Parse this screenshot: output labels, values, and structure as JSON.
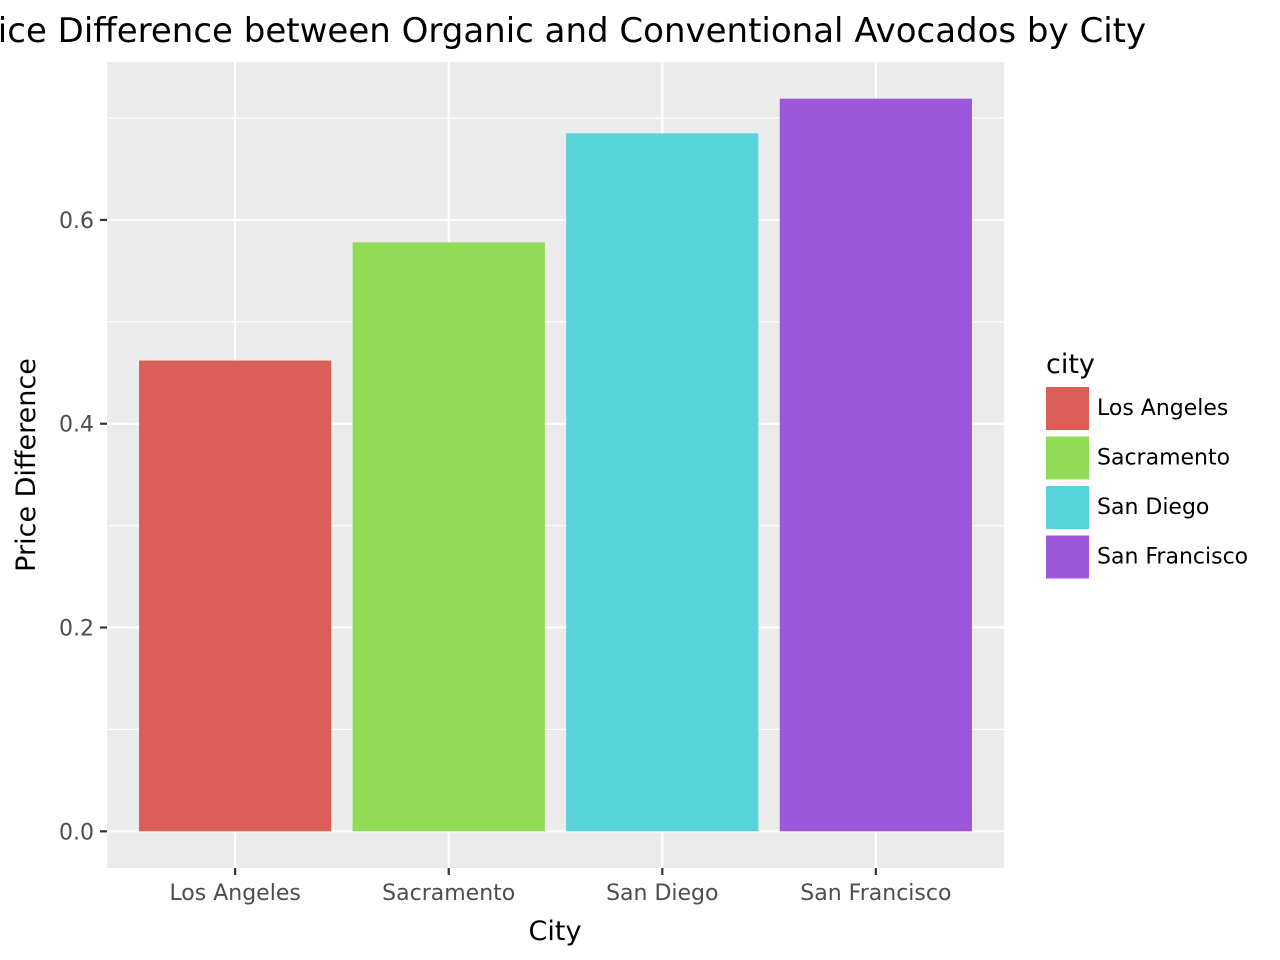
{
  "chart_data": {
    "type": "bar",
    "title": "Price Difference between Organic and Conventional Avocados by City",
    "xlabel": "City",
    "ylabel": "Price Difference",
    "categories": [
      "Los Angeles",
      "Sacramento",
      "San Diego",
      "San Francisco"
    ],
    "values": [
      0.462,
      0.578,
      0.685,
      0.719
    ],
    "ylim": [
      -0.036,
      0.755
    ],
    "yticks": [
      0.0,
      0.2,
      0.4,
      0.6
    ],
    "ytick_labels": [
      "0.0",
      "0.2",
      "0.4",
      "0.6"
    ],
    "grid": true,
    "legend": {
      "title": "city",
      "position": "right",
      "entries": [
        "Los Angeles",
        "Sacramento",
        "San Diego",
        "San Francisco"
      ]
    },
    "colors": [
      "#DB5F57",
      "#91DC57",
      "#57D3DB",
      "#9D57DB"
    ]
  },
  "style": {
    "panel_background": "#EBEBEB",
    "grid_color": "#FFFFFF",
    "tick_color": "#333333"
  }
}
